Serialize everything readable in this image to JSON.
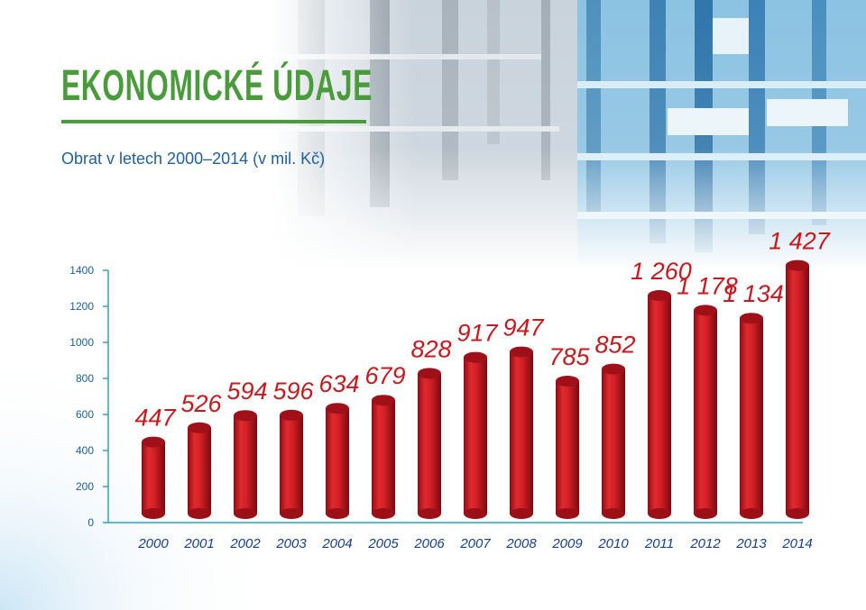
{
  "header": {
    "title": "EKONOMICKÉ ÚDAJE",
    "subtitle": "Obrat v letech 2000–2014 (v mil. Kč)"
  },
  "colors": {
    "title": "#4a9b3c",
    "subtitle": "#20609e",
    "axis": "#2aa3cc",
    "bar": "#d21f25",
    "bar_top": "#a01018",
    "data_label": "#c8191e",
    "tick_label": "#163f87"
  },
  "background": {
    "description_icon": "warehouse-photo"
  },
  "chart_data": {
    "type": "bar",
    "title": "",
    "xlabel": "",
    "ylabel": "",
    "ylim": [
      0,
      1400
    ],
    "y_ticks": [
      {
        "value": 0,
        "label": "0"
      },
      {
        "value": 200,
        "label": "200"
      },
      {
        "value": 400,
        "label": "400"
      },
      {
        "value": 600,
        "label": "600"
      },
      {
        "value": 800,
        "label": "800"
      },
      {
        "value": 1000,
        "label": "1000"
      },
      {
        "value": 1200,
        "label": "1200"
      },
      {
        "value": 1400,
        "label": "1400"
      }
    ],
    "grid": false,
    "legend": "none",
    "categories": [
      "2000",
      "2001",
      "2002",
      "2003",
      "2004",
      "2005",
      "2006",
      "2007",
      "2008",
      "2009",
      "2010",
      "2011",
      "2012",
      "2013",
      "2014"
    ],
    "values": [
      447,
      526,
      594,
      596,
      634,
      679,
      828,
      917,
      947,
      785,
      852,
      1260,
      1178,
      1134,
      1427
    ],
    "value_labels": [
      "447",
      "526",
      "594",
      "596",
      "634",
      "679",
      "828",
      "917",
      "947",
      "785",
      "852",
      "1 260",
      "1 178",
      "1 134",
      "1 427"
    ]
  }
}
